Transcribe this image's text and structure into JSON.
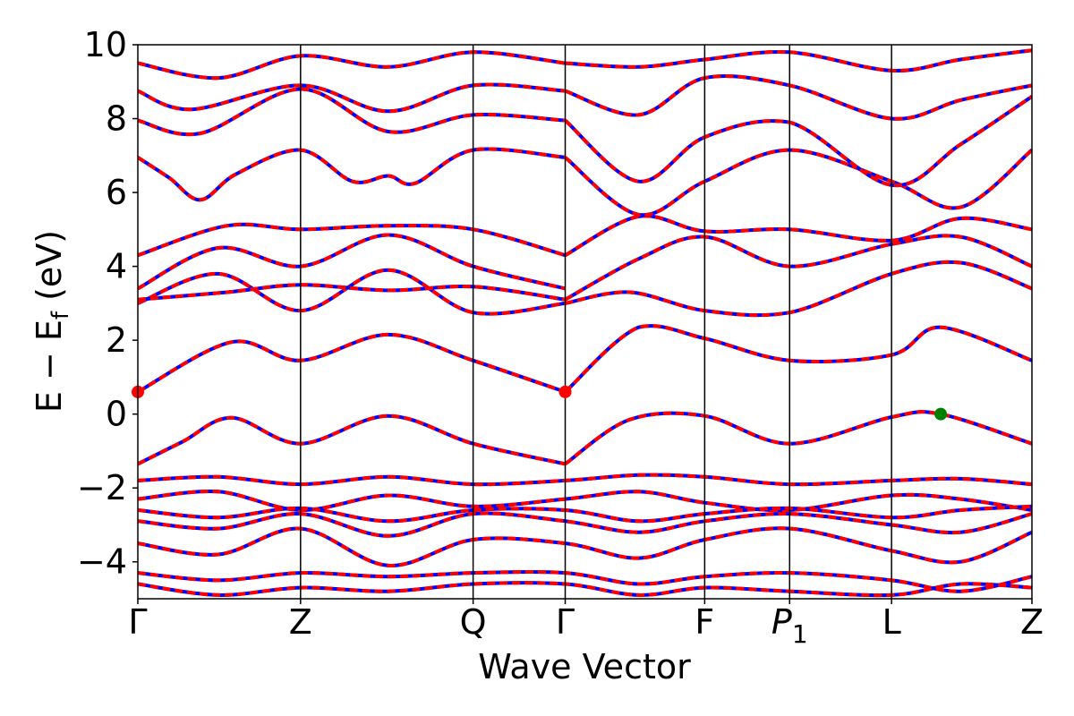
{
  "chart_data": {
    "type": "line",
    "title": "",
    "xlabel": "Wave Vector",
    "ylabel": "E − E",
    "ylabel_sub": "f",
    "ylabel_unit": " (eV)",
    "ylim": [
      -5,
      10
    ],
    "yticks": [
      "−4",
      "−2",
      "0",
      "2",
      "4",
      "6",
      "8",
      "10"
    ],
    "ytick_values": [
      -4,
      -2,
      0,
      2,
      4,
      6,
      8,
      10
    ],
    "xlim": [
      0,
      1
    ],
    "kpoints": [
      {
        "label": "Γ",
        "x": 0.0
      },
      {
        "label": "Z",
        "x": 0.182
      },
      {
        "label": "Q",
        "x": 0.375
      },
      {
        "label": "Γ",
        "x": 0.478
      },
      {
        "label": "F",
        "x": 0.634
      },
      {
        "label": "P",
        "sub": "1",
        "x": 0.729
      },
      {
        "label": "L",
        "x": 0.843
      },
      {
        "label": "Z",
        "x": 1.0
      }
    ],
    "grid": false,
    "colors": {
      "spin_up": "#ff0000",
      "spin_down": "#0000ff",
      "cbm": "#ff0000",
      "vbm": "#008000"
    },
    "series": [
      {
        "x": [
          0,
          0.05,
          0.105,
          0.182,
          0.28,
          0.375,
          0.478
        ],
        "y": [
          -1.35,
          -0.75,
          -0.1,
          -0.8,
          -0.05,
          -0.8,
          -1.35
        ]
      },
      {
        "x": [
          0.478,
          0.55,
          0.634,
          0.729,
          0.843,
          0.898,
          1.0
        ],
        "y": [
          -1.35,
          -0.15,
          -0.05,
          -0.8,
          -0.08,
          0.0,
          -0.8
        ]
      },
      {
        "x": [
          0,
          0.105,
          0.182,
          0.28,
          0.375,
          0.478
        ],
        "y": [
          0.6,
          1.95,
          1.45,
          2.15,
          1.45,
          0.6
        ]
      },
      {
        "x": [
          0.478,
          0.56,
          0.634,
          0.729,
          0.843,
          0.898,
          1.0
        ],
        "y": [
          0.6,
          2.35,
          2.05,
          1.45,
          1.6,
          2.35,
          1.45
        ]
      },
      {
        "x": [
          0,
          0.09,
          0.182,
          0.28,
          0.375,
          0.478
        ],
        "y": [
          3.0,
          3.8,
          2.8,
          3.9,
          2.75,
          3.0
        ]
      },
      {
        "x": [
          0,
          0.1,
          0.182,
          0.28,
          0.375,
          0.478
        ],
        "y": [
          3.1,
          3.3,
          3.5,
          3.35,
          3.45,
          3.1
        ]
      },
      {
        "x": [
          0,
          0.09,
          0.182,
          0.28,
          0.375,
          0.478
        ],
        "y": [
          3.4,
          4.5,
          4.0,
          4.85,
          4.0,
          3.4
        ]
      },
      {
        "x": [
          0,
          0.1,
          0.182,
          0.28,
          0.375,
          0.478
        ],
        "y": [
          4.3,
          5.1,
          5.0,
          5.1,
          5.0,
          4.3
        ]
      },
      {
        "x": [
          0.478,
          0.55,
          0.634,
          0.729,
          0.843,
          0.92,
          1.0
        ],
        "y": [
          3.0,
          3.3,
          2.8,
          2.75,
          3.8,
          4.1,
          3.4
        ]
      },
      {
        "x": [
          0.478,
          0.56,
          0.634,
          0.729,
          0.843,
          0.92,
          1.0
        ],
        "y": [
          3.1,
          4.2,
          4.8,
          4.0,
          4.6,
          4.8,
          4.0
        ]
      },
      {
        "x": [
          0.478,
          0.56,
          0.634,
          0.729,
          0.843,
          0.92,
          1.0
        ],
        "y": [
          4.3,
          5.35,
          4.95,
          5.0,
          4.7,
          5.3,
          5.0
        ]
      },
      {
        "x": [
          0,
          0.035,
          0.07,
          0.11,
          0.182,
          0.24,
          0.28,
          0.31,
          0.375,
          0.478
        ],
        "y": [
          6.95,
          6.4,
          5.8,
          6.5,
          7.15,
          6.3,
          6.45,
          6.25,
          7.15,
          6.95
        ]
      },
      {
        "x": [
          0,
          0.07,
          0.182,
          0.28,
          0.375,
          0.478
        ],
        "y": [
          7.95,
          7.6,
          8.8,
          7.65,
          8.1,
          7.95
        ]
      },
      {
        "x": [
          0.478,
          0.56,
          0.634,
          0.729,
          0.843,
          0.92,
          1.0
        ],
        "y": [
          6.95,
          5.4,
          6.3,
          7.15,
          6.3,
          5.6,
          7.15
        ]
      },
      {
        "x": [
          0.478,
          0.56,
          0.634,
          0.729,
          0.843,
          0.92,
          1.0
        ],
        "y": [
          7.95,
          6.3,
          7.5,
          7.9,
          6.2,
          7.3,
          8.6
        ]
      },
      {
        "x": [
          0,
          0.06,
          0.182,
          0.28,
          0.375,
          0.478
        ],
        "y": [
          8.75,
          8.25,
          8.9,
          8.2,
          8.9,
          8.75
        ]
      },
      {
        "x": [
          0,
          0.09,
          0.182,
          0.28,
          0.375,
          0.478
        ],
        "y": [
          9.5,
          9.1,
          9.7,
          9.4,
          9.8,
          9.5
        ]
      },
      {
        "x": [
          0.478,
          0.56,
          0.634,
          0.729,
          0.843,
          0.92,
          1.0
        ],
        "y": [
          8.75,
          8.1,
          9.1,
          8.9,
          8.0,
          8.5,
          8.9
        ]
      },
      {
        "x": [
          0.478,
          0.56,
          0.634,
          0.729,
          0.843,
          0.92,
          1.0
        ],
        "y": [
          9.5,
          9.4,
          9.6,
          9.8,
          9.3,
          9.6,
          9.85
        ]
      },
      {
        "x": [
          0,
          0.09,
          0.182,
          0.28,
          0.375,
          0.478,
          0.56,
          0.634,
          0.729,
          0.843,
          0.92,
          1.0
        ],
        "y": [
          -1.8,
          -1.7,
          -1.9,
          -1.7,
          -1.9,
          -1.8,
          -1.65,
          -1.7,
          -1.9,
          -1.8,
          -1.75,
          -1.9
        ]
      },
      {
        "x": [
          0,
          0.09,
          0.182,
          0.28,
          0.375,
          0.478,
          0.56,
          0.634,
          0.729,
          0.843,
          0.92,
          1.0
        ],
        "y": [
          -2.3,
          -2.1,
          -2.6,
          -2.2,
          -2.5,
          -2.3,
          -2.1,
          -2.4,
          -2.6,
          -2.2,
          -2.3,
          -2.6
        ]
      },
      {
        "x": [
          0,
          0.09,
          0.182,
          0.28,
          0.375,
          0.478,
          0.56,
          0.634,
          0.729,
          0.843,
          0.92,
          1.0
        ],
        "y": [
          -2.6,
          -2.8,
          -2.55,
          -2.9,
          -2.6,
          -2.6,
          -2.9,
          -2.7,
          -2.55,
          -2.8,
          -2.6,
          -2.5
        ]
      },
      {
        "x": [
          0,
          0.09,
          0.182,
          0.28,
          0.375,
          0.478,
          0.56,
          0.634,
          0.729,
          0.843,
          0.92,
          1.0
        ],
        "y": [
          -2.9,
          -3.1,
          -2.7,
          -3.3,
          -2.7,
          -2.9,
          -3.2,
          -2.9,
          -2.7,
          -3.0,
          -3.2,
          -2.7
        ]
      },
      {
        "x": [
          0,
          0.09,
          0.182,
          0.28,
          0.375,
          0.478,
          0.56,
          0.634,
          0.729,
          0.843,
          0.92,
          1.0
        ],
        "y": [
          -3.5,
          -3.8,
          -3.1,
          -4.1,
          -3.4,
          -3.5,
          -3.9,
          -3.4,
          -3.1,
          -3.7,
          -4.0,
          -3.2
        ]
      },
      {
        "x": [
          0,
          0.09,
          0.182,
          0.28,
          0.375,
          0.478,
          0.56,
          0.634,
          0.729,
          0.843,
          0.92,
          1.0
        ],
        "y": [
          -4.3,
          -4.5,
          -4.3,
          -4.4,
          -4.3,
          -4.3,
          -4.6,
          -4.4,
          -4.3,
          -4.5,
          -4.8,
          -4.4
        ]
      },
      {
        "x": [
          0,
          0.09,
          0.182,
          0.28,
          0.375,
          0.478,
          0.56,
          0.634,
          0.729,
          0.843,
          0.92,
          1.0
        ],
        "y": [
          -4.6,
          -4.9,
          -4.7,
          -4.8,
          -4.6,
          -4.6,
          -4.9,
          -4.7,
          -4.8,
          -4.9,
          -4.6,
          -4.7
        ]
      }
    ],
    "markers": [
      {
        "x": 0.0,
        "y": 0.6,
        "color": "#ff0000"
      },
      {
        "x": 0.478,
        "y": 0.6,
        "color": "#ff0000"
      },
      {
        "x": 0.898,
        "y": 0.0,
        "color": "#008000"
      }
    ]
  }
}
